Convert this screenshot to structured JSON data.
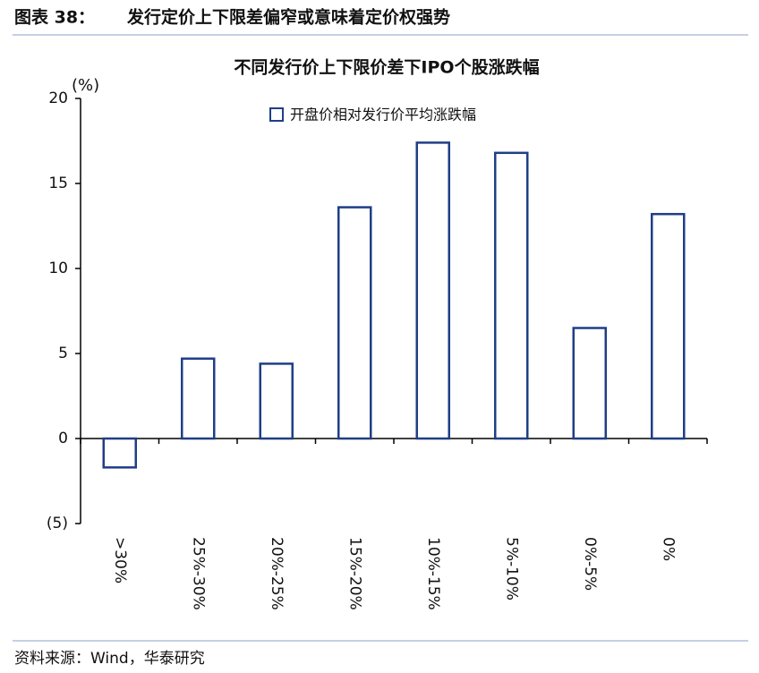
{
  "header": {
    "label": "图表 38：",
    "title": "发行定价上下限差偏窄或意味着定价权强势"
  },
  "chart_data": {
    "type": "bar",
    "title": "不同发行价上下限价差下IPO个股涨跌幅",
    "y_unit": "(%)",
    "categories": [
      ">30%",
      "25%-30%",
      "20%-25%",
      "15%-20%",
      "10%-15%",
      "5%-10%",
      "0%-5%",
      "0%"
    ],
    "series": [
      {
        "name": "开盘价相对发行价平均涨跌幅",
        "color": "#1f3e86",
        "values": [
          -1.7,
          4.7,
          4.4,
          13.6,
          17.4,
          16.8,
          6.5,
          13.2
        ]
      }
    ],
    "ylim": [
      -5,
      20
    ],
    "yticks": [
      {
        "value": -5,
        "label": "(5)"
      },
      0,
      5,
      10,
      15,
      20
    ],
    "negative_tick_color": "#d00000"
  },
  "source": "资料来源：Wind，华泰研究"
}
